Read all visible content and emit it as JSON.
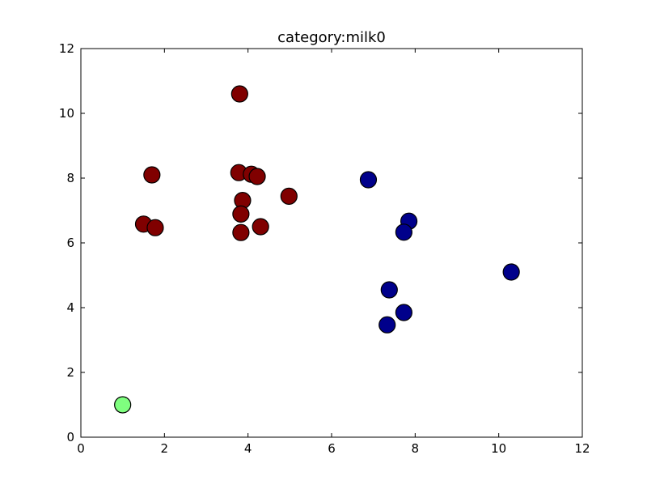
{
  "chart_data": {
    "type": "scatter",
    "title": "category:milk0",
    "xlabel": "",
    "ylabel": "",
    "xlim": [
      0,
      12
    ],
    "ylim": [
      0,
      12
    ],
    "x_ticks": [
      "0",
      "2",
      "4",
      "6",
      "8",
      "10",
      "12"
    ],
    "y_ticks": [
      "0",
      "2",
      "4",
      "6",
      "8",
      "10",
      "12"
    ],
    "grid": false,
    "legend": "none",
    "series": [
      {
        "color": "#800000",
        "points": [
          {
            "x": 3.8,
            "y": 10.6
          },
          {
            "x": 1.7,
            "y": 8.1
          },
          {
            "x": 3.78,
            "y": 8.17
          },
          {
            "x": 4.08,
            "y": 8.12
          },
          {
            "x": 4.22,
            "y": 8.05
          },
          {
            "x": 4.98,
            "y": 7.44
          },
          {
            "x": 3.87,
            "y": 7.31
          },
          {
            "x": 3.83,
            "y": 6.89
          },
          {
            "x": 1.5,
            "y": 6.58
          },
          {
            "x": 1.78,
            "y": 6.47
          },
          {
            "x": 4.3,
            "y": 6.5
          },
          {
            "x": 3.83,
            "y": 6.32
          }
        ]
      },
      {
        "color": "#00008b",
        "points": [
          {
            "x": 6.88,
            "y": 7.95
          },
          {
            "x": 7.85,
            "y": 6.67
          },
          {
            "x": 7.73,
            "y": 6.33
          },
          {
            "x": 10.3,
            "y": 5.1
          },
          {
            "x": 7.38,
            "y": 4.55
          },
          {
            "x": 7.73,
            "y": 3.85
          },
          {
            "x": 7.33,
            "y": 3.47
          }
        ]
      },
      {
        "color": "#7fff7f",
        "points": [
          {
            "x": 1.0,
            "y": 1.0
          }
        ]
      }
    ]
  }
}
